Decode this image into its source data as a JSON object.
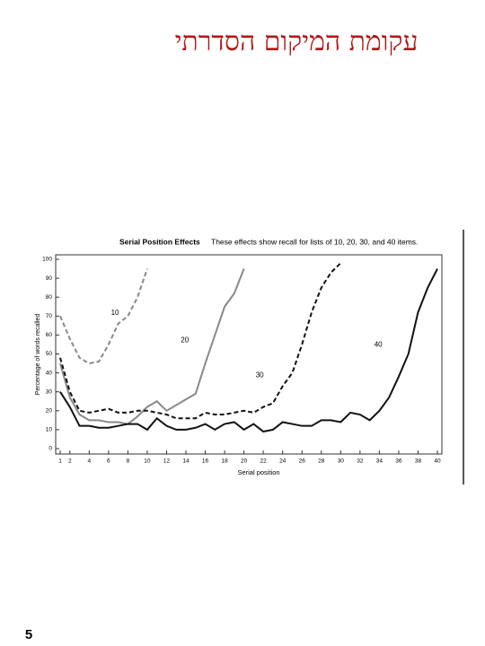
{
  "slide": {
    "title": "עקומת המיקום הסדרתי",
    "page_number": "5"
  },
  "chart_data": {
    "type": "line",
    "title": "Serial Position Effects",
    "subtitle": "These effects show recall for lists of 10, 20, 30, and 40 items.",
    "x_label": "Serial position",
    "y_label": "Percentage of words recalled",
    "xlim": [
      1,
      40
    ],
    "ylim": [
      0,
      100
    ],
    "xticks": [
      1,
      2,
      4,
      6,
      8,
      10,
      12,
      14,
      16,
      18,
      20,
      22,
      24,
      26,
      28,
      30,
      32,
      34,
      36,
      38,
      40
    ],
    "yticks": [
      0,
      10,
      20,
      30,
      40,
      50,
      60,
      70,
      80,
      90,
      100
    ],
    "series": [
      {
        "name": "10",
        "color": "#888888",
        "dashed": true,
        "x": [
          1,
          2,
          3,
          4,
          5,
          6,
          7,
          8,
          9,
          10
        ],
        "values": [
          70,
          58,
          48,
          45,
          46,
          55,
          66,
          70,
          80,
          95
        ]
      },
      {
        "name": "20",
        "color": "#888888",
        "dashed": false,
        "x": [
          1,
          2,
          3,
          4,
          5,
          6,
          7,
          8,
          9,
          10,
          11,
          12,
          13,
          14,
          15,
          16,
          17,
          18,
          19,
          20
        ],
        "values": [
          45,
          27,
          18,
          15,
          15,
          14,
          14,
          13,
          17,
          22,
          25,
          20,
          23,
          26,
          29,
          45,
          60,
          75,
          82,
          95
        ]
      },
      {
        "name": "30",
        "color": "#111111",
        "dashed": true,
        "x": [
          1,
          2,
          3,
          4,
          5,
          6,
          7,
          8,
          9,
          10,
          11,
          12,
          13,
          14,
          15,
          16,
          17,
          18,
          19,
          20,
          21,
          22,
          23,
          24,
          25,
          26,
          27,
          28,
          29,
          30
        ],
        "values": [
          48,
          30,
          20,
          19,
          20,
          21,
          19,
          19,
          20,
          20,
          19,
          18,
          16,
          16,
          16,
          19,
          18,
          18,
          19,
          20,
          19,
          22,
          24,
          33,
          40,
          55,
          72,
          85,
          93,
          98
        ]
      },
      {
        "name": "40",
        "color": "#111111",
        "dashed": false,
        "x": [
          1,
          2,
          3,
          4,
          5,
          6,
          7,
          8,
          9,
          10,
          11,
          12,
          13,
          14,
          15,
          16,
          17,
          18,
          19,
          20,
          21,
          22,
          23,
          24,
          25,
          26,
          27,
          28,
          29,
          30,
          31,
          32,
          33,
          34,
          35,
          36,
          37,
          38,
          39,
          40
        ],
        "values": [
          30,
          22,
          12,
          12,
          11,
          11,
          12,
          13,
          13,
          10,
          16,
          12,
          10,
          10,
          11,
          13,
          10,
          13,
          14,
          10,
          13,
          9,
          10,
          14,
          13,
          12,
          12,
          15,
          15,
          14,
          19,
          18,
          15,
          20,
          27,
          38,
          50,
          72,
          85,
          95
        ]
      }
    ]
  }
}
